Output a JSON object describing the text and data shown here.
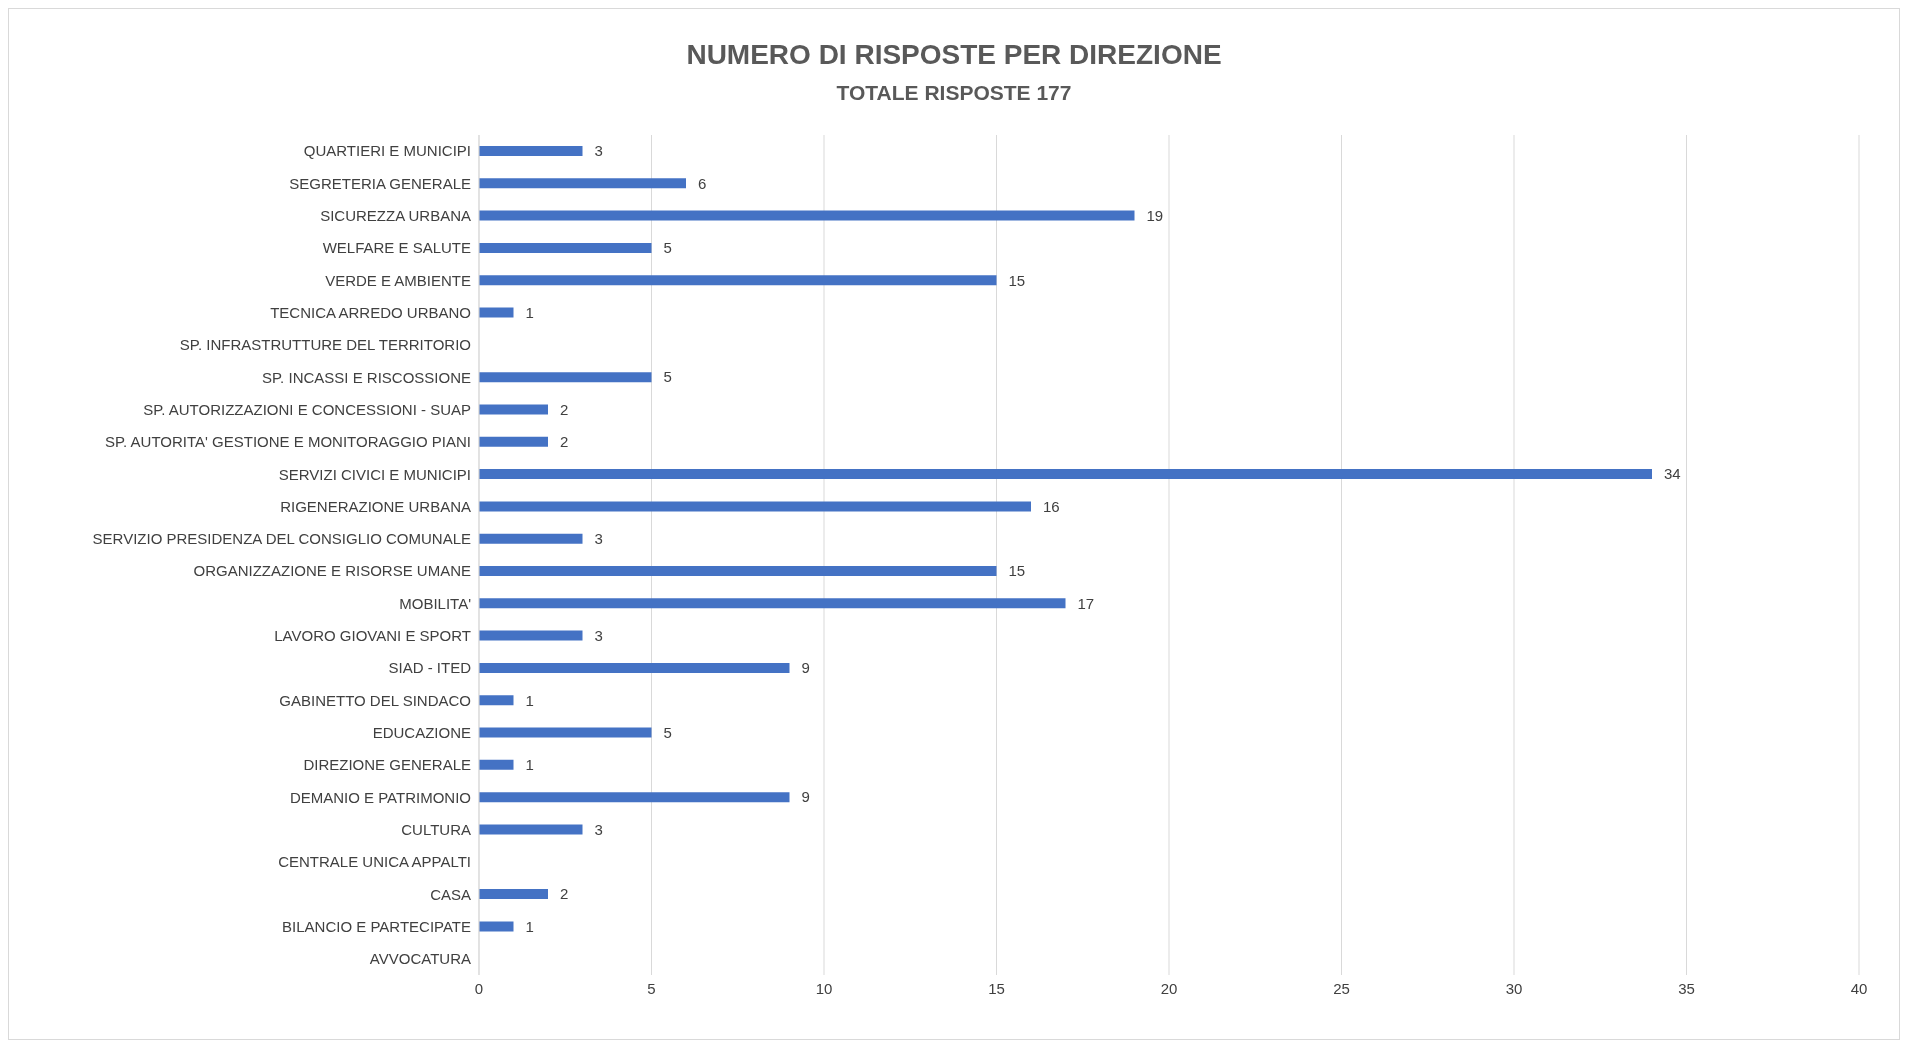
{
  "chart_data": {
    "type": "bar",
    "orientation": "horizontal",
    "title": "NUMERO DI RISPOSTE PER DIREZIONE",
    "subtitle": "TOTALE RISPOSTE 177",
    "categories": [
      "QUARTIERI E MUNICIPI",
      "SEGRETERIA GENERALE",
      "SICUREZZA URBANA",
      "WELFARE E SALUTE",
      "VERDE E AMBIENTE",
      "TECNICA ARREDO URBANO",
      "SP. INFRASTRUTTURE DEL TERRITORIO",
      "SP. INCASSI E RISCOSSIONE",
      "SP. AUTORIZZAZIONI E CONCESSIONI - SUAP",
      "SP. AUTORITA' GESTIONE E MONITORAGGIO PIANI",
      "SERVIZI CIVICI E MUNICIPI",
      "RIGENERAZIONE URBANA",
      "SERVIZIO PRESIDENZA DEL CONSIGLIO COMUNALE",
      "ORGANIZZAZIONE E RISORSE UMANE",
      "MOBILITA'",
      "LAVORO GIOVANI E SPORT",
      "SIAD - ITED",
      "GABINETTO DEL SINDACO",
      "EDUCAZIONE",
      "DIREZIONE GENERALE",
      "DEMANIO E PATRIMONIO",
      "CULTURA",
      "CENTRALE UNICA APPALTI",
      "CASA",
      "BILANCIO E PARTECIPATE",
      "AVVOCATURA"
    ],
    "values": [
      3,
      6,
      19,
      5,
      15,
      1,
      0,
      5,
      2,
      2,
      34,
      16,
      3,
      15,
      17,
      3,
      9,
      1,
      5,
      1,
      9,
      3,
      0,
      2,
      1,
      0
    ],
    "value_labels": [
      "3",
      "6",
      "19",
      "5",
      "15",
      "1",
      null,
      "5",
      "2",
      "2",
      "34",
      "16",
      "3",
      "15",
      "17",
      "3",
      "9",
      "1",
      "5",
      "1",
      "9",
      "3",
      null,
      "2",
      "1",
      null
    ],
    "color": "#4472c4",
    "xlim": [
      0,
      40
    ],
    "xticks": [
      0,
      5,
      10,
      15,
      20,
      25,
      30,
      35,
      40
    ],
    "grid": "x",
    "legend": false
  }
}
